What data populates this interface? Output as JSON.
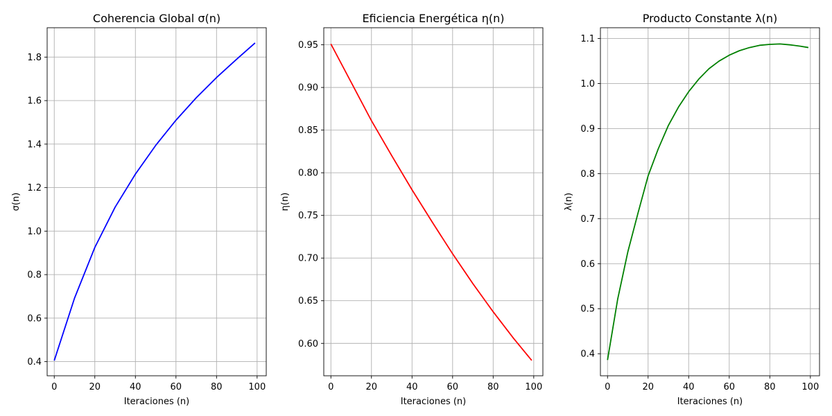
{
  "figure": {
    "background": "#ffffff"
  },
  "chart_data": [
    {
      "type": "line",
      "title": "Coherencia Global σ(n)",
      "xlabel": "Iteraciones (n)",
      "ylabel": "σ(n)",
      "xlim": [
        -3.5,
        104.5
      ],
      "ylim": [
        0.335,
        1.935
      ],
      "xticks": [
        0,
        20,
        40,
        60,
        80,
        100
      ],
      "yticks": [
        0.4,
        0.6,
        0.8,
        1.0,
        1.2,
        1.4,
        1.6,
        1.8
      ],
      "ytick_labels": [
        "0.4",
        "0.6",
        "0.8",
        "1.0",
        "1.2",
        "1.4",
        "1.6",
        "1.8"
      ],
      "grid": true,
      "series": [
        {
          "color": "#0000ff",
          "x": [
            0,
            10,
            20,
            30,
            40,
            50,
            60,
            70,
            80,
            90,
            99
          ],
          "y": [
            0.405,
            0.692,
            0.925,
            1.11,
            1.262,
            1.394,
            1.51,
            1.613,
            1.706,
            1.791,
            1.865
          ]
        }
      ]
    },
    {
      "type": "line",
      "title": "Eficiencia Energética η(n)",
      "xlabel": "Iteraciones (n)",
      "ylabel": "η(n)",
      "xlim": [
        -3.5,
        104.5
      ],
      "ylim": [
        0.562,
        0.97
      ],
      "xticks": [
        0,
        20,
        40,
        60,
        80,
        100
      ],
      "yticks": [
        0.6,
        0.65,
        0.7,
        0.75,
        0.8,
        0.85,
        0.9,
        0.95
      ],
      "ytick_labels": [
        "0.60",
        "0.65",
        "0.70",
        "0.75",
        "0.80",
        "0.85",
        "0.90",
        "0.95"
      ],
      "grid": true,
      "series": [
        {
          "color": "#ff0000",
          "x": [
            0,
            10,
            20,
            30,
            40,
            50,
            60,
            70,
            80,
            90,
            99
          ],
          "y": [
            0.951,
            0.906,
            0.861,
            0.82,
            0.78,
            0.742,
            0.705,
            0.67,
            0.637,
            0.606,
            0.58
          ]
        }
      ]
    },
    {
      "type": "line",
      "title": "Producto Constante λ(n)",
      "xlabel": "Iteraciones (n)",
      "ylabel": "λ(n)",
      "xlim": [
        -3.5,
        104.5
      ],
      "ylim": [
        0.351,
        1.124
      ],
      "xticks": [
        0,
        20,
        40,
        60,
        80,
        100
      ],
      "yticks": [
        0.4,
        0.5,
        0.6,
        0.7,
        0.8,
        0.9,
        1.0,
        1.1
      ],
      "ytick_labels": [
        "0.4",
        "0.5",
        "0.6",
        "0.7",
        "0.8",
        "0.9",
        "1.0",
        "1.1"
      ],
      "grid": true,
      "series": [
        {
          "color": "#008000",
          "x": [
            0,
            5,
            10,
            15,
            20,
            25,
            30,
            35,
            40,
            45,
            50,
            55,
            60,
            65,
            70,
            75,
            80,
            85,
            90,
            95,
            99
          ],
          "y": [
            0.386,
            0.521,
            0.626,
            0.712,
            0.795,
            0.855,
            0.907,
            0.948,
            0.982,
            1.01,
            1.033,
            1.05,
            1.063,
            1.073,
            1.08,
            1.085,
            1.087,
            1.088,
            1.086,
            1.083,
            1.08
          ]
        }
      ]
    }
  ]
}
